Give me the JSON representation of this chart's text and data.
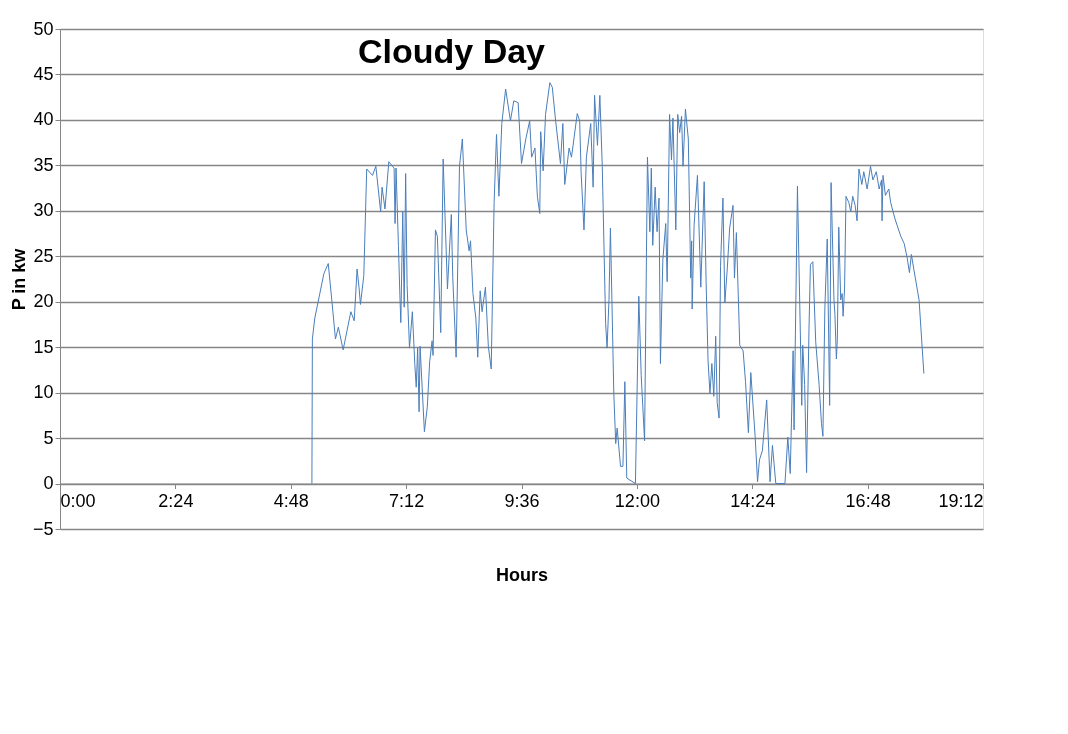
{
  "chart_data": {
    "type": "line",
    "title": "Cloudy Day",
    "xlabel": "Hours",
    "ylabel": "P in kw",
    "series": [
      {
        "color": "#4a7ebb",
        "x": [
          5.24,
          5.25,
          5.3,
          5.49,
          5.58,
          5.65,
          5.73,
          5.79,
          5.89,
          6.05,
          6.12,
          6.18,
          6.22,
          6.25,
          6.32,
          6.38,
          6.5,
          6.57,
          6.67,
          6.7,
          6.76,
          6.84,
          6.95,
          6.97,
          6.99,
          7.04,
          7.07,
          7.09,
          7.13,
          7.16,
          7.19,
          7.22,
          7.27,
          7.33,
          7.38,
          7.41,
          7.44,
          7.47,
          7.49,
          7.58,
          7.64,
          7.69,
          7.74,
          7.76,
          7.81,
          7.85,
          7.92,
          7.97,
          8.06,
          8.14,
          8.17,
          8.24,
          8.31,
          8.37,
          8.45,
          8.51,
          8.54,
          8.59,
          8.65,
          8.69,
          8.74,
          8.78,
          8.85,
          8.91,
          8.97,
          9.03,
          9.08,
          9.13,
          9.19,
          9.27,
          9.37,
          9.44,
          9.53,
          9.6,
          9.69,
          9.77,
          9.81,
          9.88,
          9.93,
          9.98,
          10.0,
          10.05,
          10.1,
          10.19,
          10.24,
          10.31,
          10.41,
          10.46,
          10.5,
          10.59,
          10.64,
          10.76,
          10.81,
          10.84,
          10.9,
          10.95,
          11.04,
          11.09,
          11.12,
          11.18,
          11.23,
          11.28,
          11.35,
          11.38,
          11.42,
          11.45,
          11.52,
          11.56,
          11.59,
          11.66,
          11.71,
          11.75,
          11.79,
          11.97,
          12.04,
          12.09,
          12.16,
          12.22,
          12.27,
          12.3,
          12.33,
          12.38,
          12.42,
          12.46,
          12.49,
          12.54,
          12.6,
          12.63,
          12.68,
          12.72,
          12.75,
          12.81,
          12.85,
          12.89,
          12.93,
          12.96,
          13.01,
          13.07,
          13.12,
          13.14,
          13.15,
          13.19,
          13.26,
          13.33,
          13.4,
          13.44,
          13.48,
          13.52,
          13.56,
          13.6,
          13.64,
          13.67,
          13.71,
          13.74,
          13.79,
          13.83,
          13.88,
          13.93,
          14.0,
          14.03,
          14.07,
          14.14,
          14.21,
          14.26,
          14.32,
          14.37,
          14.46,
          14.51,
          14.55,
          14.61,
          14.7,
          14.77,
          14.82,
          14.89,
          15.08,
          15.14,
          15.19,
          15.25,
          15.27,
          15.34,
          15.43,
          15.45,
          15.49,
          15.53,
          15.58,
          15.61,
          15.66,
          15.72,
          15.79,
          15.84,
          15.87,
          15.91,
          15.96,
          16.01,
          16.04,
          16.1,
          16.12,
          16.15,
          16.17,
          16.2,
          16.24,
          16.27,
          16.29,
          16.32,
          16.35,
          16.41,
          16.45,
          16.49,
          16.54,
          16.58,
          16.62,
          16.68,
          16.72,
          16.79,
          16.86,
          16.91,
          16.98,
          17.04,
          17.09,
          17.1,
          17.12,
          17.17,
          17.24,
          17.28,
          17.37,
          17.49,
          17.56,
          17.62,
          17.67,
          17.71,
          17.76,
          17.87,
          17.97
        ],
        "values": [
          0,
          15.9,
          18.2,
          23.1,
          24.2,
          20.4,
          15.9,
          17.2,
          14.7,
          18.9,
          17.9,
          23.6,
          21.6,
          19.7,
          22.9,
          34.6,
          33.9,
          34.9,
          29.9,
          32.6,
          30.2,
          35.4,
          34.7,
          28.6,
          34.7,
          26.2,
          20.7,
          17.7,
          29.9,
          19.4,
          34.1,
          21.9,
          14.9,
          18.9,
          13.2,
          10.6,
          14.9,
          7.9,
          15.1,
          5.7,
          8.4,
          13.4,
          15.7,
          14.1,
          27.9,
          27.2,
          16.6,
          35.7,
          21.4,
          29.6,
          22.7,
          13.9,
          34.9,
          37.9,
          27.9,
          25.6,
          26.7,
          20.9,
          18.2,
          13.9,
          21.2,
          18.9,
          21.6,
          15.1,
          12.6,
          30.9,
          38.4,
          31.6,
          39.6,
          43.4,
          39.9,
          42.1,
          41.9,
          35.2,
          37.9,
          39.9,
          35.9,
          36.9,
          31.6,
          29.7,
          38.7,
          34.4,
          40.6,
          44.1,
          43.6,
          39.9,
          35.2,
          39.6,
          32.9,
          36.9,
          35.9,
          40.7,
          39.9,
          34.2,
          27.9,
          35.9,
          39.6,
          32.6,
          42.7,
          37.2,
          42.7,
          34.9,
          17.6,
          14.9,
          20.2,
          28.1,
          9.9,
          4.4,
          6.1,
          1.9,
          1.9,
          11.2,
          0.6,
          0,
          20.6,
          11.9,
          4.7,
          35.9,
          27.7,
          34.7,
          26.2,
          32.6,
          27.7,
          31.4,
          13.2,
          24.6,
          28.6,
          22.2,
          40.6,
          35.6,
          40.2,
          27.9,
          40.6,
          38.6,
          40.4,
          34.9,
          41.2,
          37.9,
          22.6,
          26.7,
          19.2,
          28.4,
          33.9,
          21.6,
          33.2,
          22.2,
          13.6,
          9.9,
          13.2,
          9.6,
          16.2,
          8.9,
          7.2,
          23.9,
          31.4,
          19.9,
          23.6,
          28.1,
          30.6,
          22.6,
          27.6,
          15.2,
          14.6,
          11.2,
          5.6,
          12.2,
          5.2,
          0.2,
          2.6,
          3.6,
          9.2,
          0.2,
          4.2,
          0,
          0,
          5.1,
          1.1,
          14.6,
          5.9,
          32.7,
          8.6,
          15.2,
          10.9,
          1.2,
          16.9,
          24.1,
          24.4,
          15.6,
          10.9,
          6.6,
          5.2,
          19.2,
          26.9,
          8.6,
          33.1,
          20.2,
          18.6,
          13.7,
          15.9,
          28.2,
          20.2,
          20.9,
          18.4,
          21.4,
          31.6,
          30.9,
          29.9,
          31.6,
          30.6,
          28.9,
          34.6,
          32.9,
          34.3,
          32.4,
          34.9,
          33.4,
          34.3,
          32.4,
          33.4,
          28.9,
          33.9,
          31.7,
          32.4,
          30.9,
          29.1,
          27.2,
          26.4,
          24.9,
          23.2,
          25.2,
          23.6,
          20.2,
          12.1
        ]
      }
    ],
    "xlim": [
      0,
      19.2
    ],
    "xticks": [
      {
        "value": 0,
        "label": "0:00"
      },
      {
        "value": 2.4,
        "label": "2:24"
      },
      {
        "value": 4.8,
        "label": "4:48"
      },
      {
        "value": 7.2,
        "label": "7:12"
      },
      {
        "value": 9.6,
        "label": "9:36"
      },
      {
        "value": 12,
        "label": "12:00"
      },
      {
        "value": 14.4,
        "label": "14:24"
      },
      {
        "value": 16.8,
        "label": "16:48"
      },
      {
        "value": 19.2,
        "label": "19:12"
      }
    ],
    "ylim": [
      -5,
      50
    ],
    "yticks": [
      -5,
      0,
      5,
      10,
      15,
      20,
      25,
      30,
      35,
      40,
      45,
      50
    ],
    "grid": "y",
    "legend": false,
    "marker": "none",
    "line_style": "solid"
  }
}
